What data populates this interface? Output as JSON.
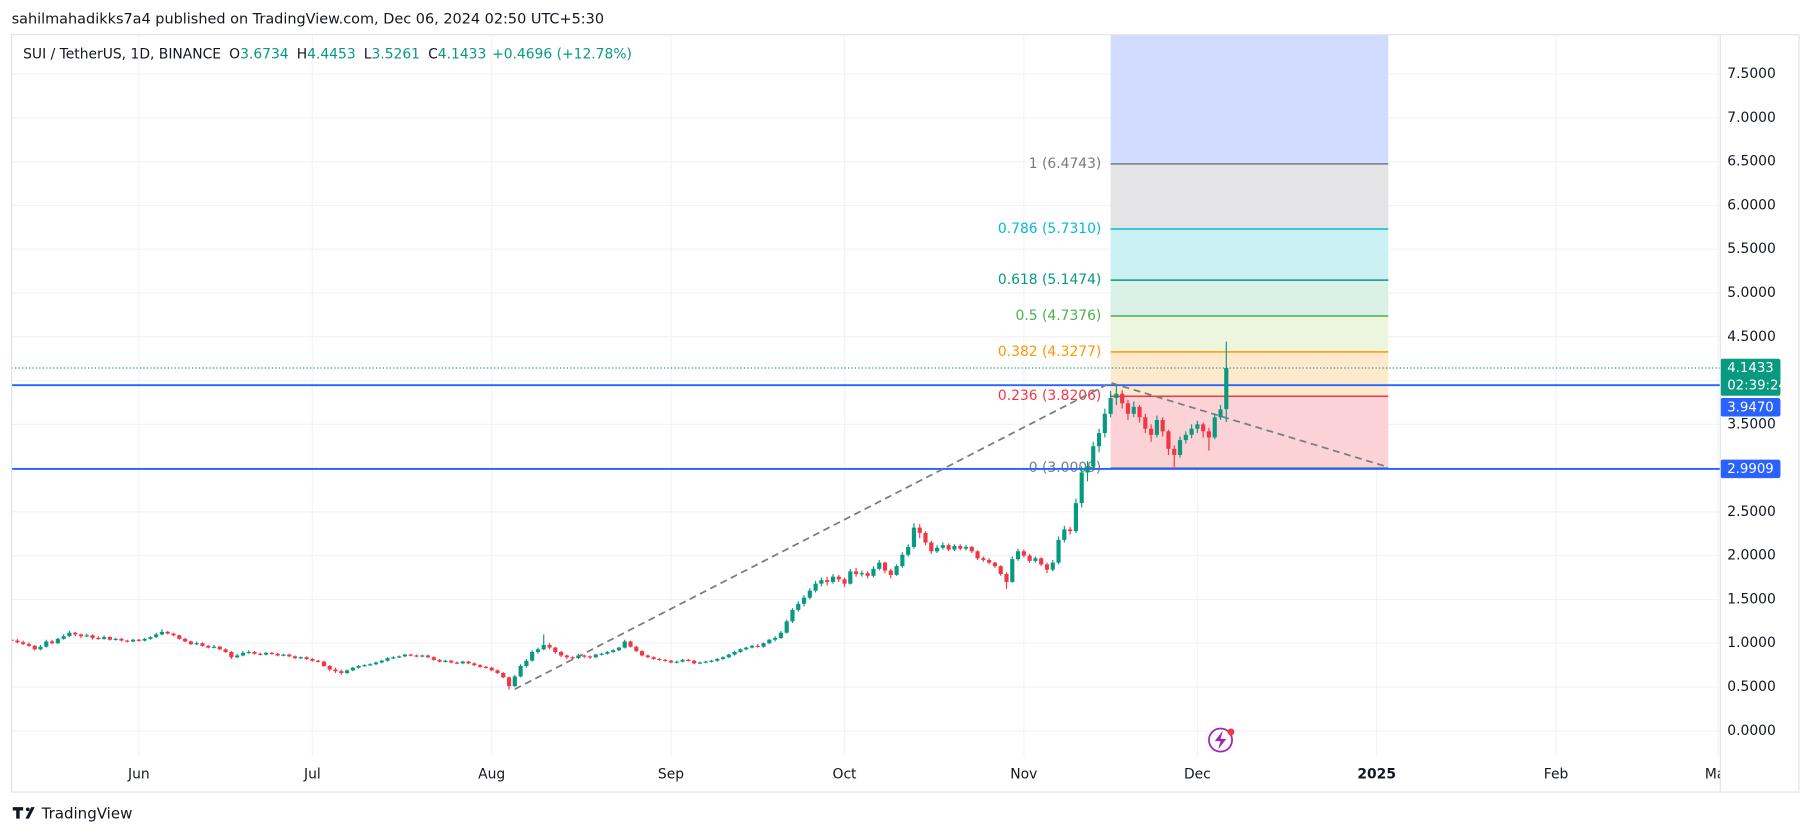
{
  "header": "sahilmahadikks7a4 published on TradingView.com, Dec 06, 2024 02:50 UTC+5:30",
  "footer": "TradingView",
  "chart_data": {
    "type": "candlestick",
    "symbol": "SUI / TetherUS, 1D, BINANCE",
    "ohlc": [
      {
        "label": "O",
        "value": 3.6734
      },
      {
        "label": "H",
        "value": 4.4453
      },
      {
        "label": "L",
        "value": 3.5261
      },
      {
        "label": "C",
        "value": 4.1433
      }
    ],
    "change": "+0.4696 (+12.78%)",
    "up_color": "#089981",
    "down_color": "#f23645",
    "candles": [
      [
        1.04,
        1.06,
        1.01,
        1.03
      ],
      [
        1.03,
        1.05,
        1.0,
        1.01
      ],
      [
        1.01,
        1.03,
        0.98,
        0.99
      ],
      [
        0.99,
        1.01,
        0.96,
        0.97
      ],
      [
        0.97,
        0.98,
        0.92,
        0.93
      ],
      [
        0.93,
        0.98,
        0.92,
        0.96
      ],
      [
        0.96,
        1.04,
        0.95,
        1.02
      ],
      [
        1.02,
        1.04,
        0.99,
        1.0
      ],
      [
        1.0,
        1.06,
        0.99,
        1.05
      ],
      [
        1.05,
        1.1,
        1.04,
        1.08
      ],
      [
        1.08,
        1.14,
        1.07,
        1.12
      ],
      [
        1.12,
        1.13,
        1.08,
        1.1
      ],
      [
        1.1,
        1.11,
        1.06,
        1.08
      ],
      [
        1.08,
        1.11,
        1.07,
        1.09
      ],
      [
        1.09,
        1.1,
        1.04,
        1.06
      ],
      [
        1.06,
        1.08,
        1.04,
        1.05
      ],
      [
        1.05,
        1.09,
        1.04,
        1.07
      ],
      [
        1.07,
        1.08,
        1.03,
        1.04
      ],
      [
        1.04,
        1.06,
        1.03,
        1.05
      ],
      [
        1.05,
        1.06,
        1.02,
        1.03
      ],
      [
        1.03,
        1.04,
        1.01,
        1.02
      ],
      [
        1.02,
        1.05,
        1.01,
        1.04
      ],
      [
        1.04,
        1.05,
        1.02,
        1.03
      ],
      [
        1.03,
        1.06,
        1.02,
        1.05
      ],
      [
        1.05,
        1.08,
        1.04,
        1.07
      ],
      [
        1.07,
        1.12,
        1.06,
        1.1
      ],
      [
        1.1,
        1.16,
        1.09,
        1.13
      ],
      [
        1.13,
        1.14,
        1.1,
        1.11
      ],
      [
        1.11,
        1.12,
        1.08,
        1.09
      ],
      [
        1.09,
        1.1,
        1.04,
        1.05
      ],
      [
        1.05,
        1.06,
        1.01,
        1.02
      ],
      [
        1.02,
        1.03,
        0.98,
        0.99
      ],
      [
        0.99,
        1.02,
        0.98,
        1.0
      ],
      [
        1.0,
        1.01,
        0.96,
        0.97
      ],
      [
        0.97,
        0.98,
        0.94,
        0.95
      ],
      [
        0.95,
        0.98,
        0.94,
        0.96
      ],
      [
        0.96,
        0.97,
        0.92,
        0.93
      ],
      [
        0.93,
        0.94,
        0.89,
        0.9
      ],
      [
        0.9,
        0.91,
        0.82,
        0.84
      ],
      [
        0.84,
        0.88,
        0.83,
        0.86
      ],
      [
        0.86,
        0.91,
        0.85,
        0.89
      ],
      [
        0.89,
        0.92,
        0.88,
        0.9
      ],
      [
        0.9,
        0.91,
        0.87,
        0.88
      ],
      [
        0.88,
        0.89,
        0.86,
        0.87
      ],
      [
        0.87,
        0.9,
        0.86,
        0.89
      ],
      [
        0.89,
        0.9,
        0.87,
        0.88
      ],
      [
        0.88,
        0.89,
        0.85,
        0.86
      ],
      [
        0.86,
        0.88,
        0.85,
        0.87
      ],
      [
        0.87,
        0.88,
        0.84,
        0.85
      ],
      [
        0.85,
        0.86,
        0.82,
        0.83
      ],
      [
        0.83,
        0.85,
        0.82,
        0.84
      ],
      [
        0.84,
        0.85,
        0.81,
        0.82
      ],
      [
        0.82,
        0.83,
        0.79,
        0.8
      ],
      [
        0.8,
        0.81,
        0.78,
        0.79
      ],
      [
        0.79,
        0.8,
        0.73,
        0.74
      ],
      [
        0.74,
        0.75,
        0.68,
        0.7
      ],
      [
        0.7,
        0.72,
        0.66,
        0.68
      ],
      [
        0.68,
        0.7,
        0.64,
        0.66
      ],
      [
        0.66,
        0.7,
        0.65,
        0.69
      ],
      [
        0.69,
        0.73,
        0.68,
        0.72
      ],
      [
        0.72,
        0.75,
        0.71,
        0.74
      ],
      [
        0.74,
        0.76,
        0.73,
        0.75
      ],
      [
        0.75,
        0.77,
        0.74,
        0.76
      ],
      [
        0.76,
        0.79,
        0.75,
        0.78
      ],
      [
        0.78,
        0.81,
        0.77,
        0.8
      ],
      [
        0.8,
        0.84,
        0.79,
        0.83
      ],
      [
        0.83,
        0.85,
        0.82,
        0.84
      ],
      [
        0.84,
        0.86,
        0.83,
        0.85
      ],
      [
        0.85,
        0.88,
        0.84,
        0.87
      ],
      [
        0.87,
        0.88,
        0.85,
        0.86
      ],
      [
        0.86,
        0.87,
        0.84,
        0.85
      ],
      [
        0.85,
        0.87,
        0.84,
        0.86
      ],
      [
        0.86,
        0.87,
        0.83,
        0.84
      ],
      [
        0.84,
        0.85,
        0.8,
        0.81
      ],
      [
        0.81,
        0.82,
        0.78,
        0.79
      ],
      [
        0.79,
        0.81,
        0.78,
        0.8
      ],
      [
        0.8,
        0.81,
        0.77,
        0.78
      ],
      [
        0.78,
        0.79,
        0.76,
        0.77
      ],
      [
        0.77,
        0.8,
        0.76,
        0.79
      ],
      [
        0.79,
        0.8,
        0.76,
        0.77
      ],
      [
        0.77,
        0.78,
        0.74,
        0.75
      ],
      [
        0.75,
        0.76,
        0.72,
        0.73
      ],
      [
        0.73,
        0.74,
        0.71,
        0.72
      ],
      [
        0.72,
        0.73,
        0.68,
        0.69
      ],
      [
        0.69,
        0.7,
        0.65,
        0.66
      ],
      [
        0.66,
        0.67,
        0.6,
        0.61
      ],
      [
        0.61,
        0.62,
        0.47,
        0.51
      ],
      [
        0.51,
        0.64,
        0.5,
        0.62
      ],
      [
        0.62,
        0.76,
        0.61,
        0.74
      ],
      [
        0.74,
        0.82,
        0.72,
        0.8
      ],
      [
        0.8,
        0.92,
        0.79,
        0.9
      ],
      [
        0.9,
        0.95,
        0.88,
        0.93
      ],
      [
        0.93,
        1.1,
        0.92,
        0.98
      ],
      [
        0.98,
        1.0,
        0.93,
        0.95
      ],
      [
        0.95,
        0.96,
        0.88,
        0.9
      ],
      [
        0.9,
        0.91,
        0.84,
        0.86
      ],
      [
        0.86,
        0.87,
        0.82,
        0.84
      ],
      [
        0.84,
        0.85,
        0.81,
        0.83
      ],
      [
        0.83,
        0.88,
        0.82,
        0.86
      ],
      [
        0.86,
        0.87,
        0.83,
        0.85
      ],
      [
        0.85,
        0.86,
        0.82,
        0.84
      ],
      [
        0.84,
        0.88,
        0.83,
        0.87
      ],
      [
        0.87,
        0.89,
        0.86,
        0.88
      ],
      [
        0.88,
        0.91,
        0.87,
        0.9
      ],
      [
        0.9,
        0.93,
        0.89,
        0.92
      ],
      [
        0.92,
        0.96,
        0.91,
        0.95
      ],
      [
        0.95,
        1.04,
        0.94,
        1.02
      ],
      [
        1.02,
        1.03,
        0.95,
        0.96
      ],
      [
        0.96,
        0.97,
        0.9,
        0.91
      ],
      [
        0.91,
        0.92,
        0.85,
        0.86
      ],
      [
        0.86,
        0.87,
        0.83,
        0.84
      ],
      [
        0.84,
        0.85,
        0.81,
        0.82
      ],
      [
        0.82,
        0.83,
        0.8,
        0.81
      ],
      [
        0.81,
        0.82,
        0.79,
        0.8
      ],
      [
        0.8,
        0.81,
        0.77,
        0.78
      ],
      [
        0.78,
        0.8,
        0.77,
        0.79
      ],
      [
        0.79,
        0.82,
        0.78,
        0.81
      ],
      [
        0.81,
        0.82,
        0.79,
        0.8
      ],
      [
        0.8,
        0.81,
        0.76,
        0.77
      ],
      [
        0.77,
        0.79,
        0.76,
        0.78
      ],
      [
        0.78,
        0.8,
        0.77,
        0.79
      ],
      [
        0.79,
        0.81,
        0.78,
        0.8
      ],
      [
        0.8,
        0.83,
        0.79,
        0.82
      ],
      [
        0.82,
        0.85,
        0.81,
        0.84
      ],
      [
        0.84,
        0.88,
        0.83,
        0.87
      ],
      [
        0.87,
        0.91,
        0.86,
        0.9
      ],
      [
        0.9,
        0.94,
        0.89,
        0.93
      ],
      [
        0.93,
        0.96,
        0.92,
        0.95
      ],
      [
        0.95,
        0.98,
        0.94,
        0.97
      ],
      [
        0.97,
        0.99,
        0.95,
        0.96
      ],
      [
        0.96,
        1.01,
        0.95,
        1.0
      ],
      [
        1.0,
        1.05,
        0.99,
        1.04
      ],
      [
        1.04,
        1.08,
        1.02,
        1.06
      ],
      [
        1.06,
        1.14,
        1.05,
        1.12
      ],
      [
        1.12,
        1.27,
        1.11,
        1.25
      ],
      [
        1.25,
        1.4,
        1.23,
        1.38
      ],
      [
        1.38,
        1.48,
        1.36,
        1.45
      ],
      [
        1.45,
        1.55,
        1.42,
        1.52
      ],
      [
        1.52,
        1.63,
        1.5,
        1.6
      ],
      [
        1.6,
        1.71,
        1.58,
        1.68
      ],
      [
        1.68,
        1.75,
        1.65,
        1.72
      ],
      [
        1.72,
        1.76,
        1.66,
        1.7
      ],
      [
        1.7,
        1.79,
        1.68,
        1.76
      ],
      [
        1.76,
        1.78,
        1.7,
        1.73
      ],
      [
        1.73,
        1.75,
        1.64,
        1.68
      ],
      [
        1.68,
        1.85,
        1.67,
        1.82
      ],
      [
        1.82,
        1.86,
        1.76,
        1.79
      ],
      [
        1.79,
        1.83,
        1.76,
        1.8
      ],
      [
        1.8,
        1.82,
        1.74,
        1.77
      ],
      [
        1.77,
        1.88,
        1.75,
        1.85
      ],
      [
        1.85,
        1.95,
        1.83,
        1.92
      ],
      [
        1.92,
        1.93,
        1.8,
        1.83
      ],
      [
        1.83,
        1.85,
        1.74,
        1.78
      ],
      [
        1.78,
        1.9,
        1.77,
        1.88
      ],
      [
        1.88,
        2.04,
        1.86,
        2.01
      ],
      [
        2.01,
        2.13,
        1.99,
        2.1
      ],
      [
        2.1,
        2.37,
        2.08,
        2.32
      ],
      [
        2.32,
        2.36,
        2.2,
        2.26
      ],
      [
        2.26,
        2.28,
        2.12,
        2.15
      ],
      [
        2.15,
        2.17,
        2.02,
        2.05
      ],
      [
        2.05,
        2.12,
        2.03,
        2.09
      ],
      [
        2.09,
        2.15,
        2.07,
        2.12
      ],
      [
        2.12,
        2.14,
        2.05,
        2.07
      ],
      [
        2.07,
        2.13,
        2.05,
        2.11
      ],
      [
        2.11,
        2.13,
        2.06,
        2.08
      ],
      [
        2.08,
        2.12,
        2.06,
        2.1
      ],
      [
        2.1,
        2.11,
        2.03,
        2.05
      ],
      [
        2.05,
        2.06,
        1.95,
        1.97
      ],
      [
        1.97,
        1.99,
        1.93,
        1.95
      ],
      [
        1.95,
        1.97,
        1.9,
        1.92
      ],
      [
        1.92,
        1.93,
        1.86,
        1.88
      ],
      [
        1.88,
        1.89,
        1.77,
        1.79
      ],
      [
        1.79,
        1.81,
        1.62,
        1.7
      ],
      [
        1.7,
        1.99,
        1.69,
        1.96
      ],
      [
        1.96,
        2.08,
        1.94,
        2.05
      ],
      [
        2.05,
        2.07,
        1.98,
        2.0
      ],
      [
        2.0,
        2.02,
        1.92,
        1.94
      ],
      [
        1.94,
        1.99,
        1.92,
        1.97
      ],
      [
        1.97,
        1.98,
        1.88,
        1.9
      ],
      [
        1.9,
        1.92,
        1.8,
        1.84
      ],
      [
        1.84,
        1.95,
        1.82,
        1.92
      ],
      [
        1.92,
        2.22,
        1.9,
        2.18
      ],
      [
        2.18,
        2.34,
        2.15,
        2.3
      ],
      [
        2.3,
        2.33,
        2.24,
        2.28
      ],
      [
        2.28,
        2.65,
        2.26,
        2.6
      ],
      [
        2.6,
        3.02,
        2.55,
        2.95
      ],
      [
        2.95,
        3.08,
        2.85,
        3.02
      ],
      [
        3.02,
        3.3,
        2.98,
        3.25
      ],
      [
        3.25,
        3.45,
        3.18,
        3.4
      ],
      [
        3.4,
        3.68,
        3.35,
        3.62
      ],
      [
        3.62,
        3.88,
        3.58,
        3.8
      ],
      [
        3.8,
        3.94,
        3.72,
        3.85
      ],
      [
        3.85,
        3.89,
        3.68,
        3.74
      ],
      [
        3.74,
        3.78,
        3.55,
        3.62
      ],
      [
        3.62,
        3.76,
        3.58,
        3.7
      ],
      [
        3.7,
        3.72,
        3.52,
        3.58
      ],
      [
        3.58,
        3.62,
        3.4,
        3.45
      ],
      [
        3.45,
        3.5,
        3.3,
        3.38
      ],
      [
        3.38,
        3.6,
        3.35,
        3.55
      ],
      [
        3.55,
        3.58,
        3.36,
        3.42
      ],
      [
        3.42,
        3.44,
        3.15,
        3.22
      ],
      [
        3.22,
        3.26,
        2.98,
        3.15
      ],
      [
        3.15,
        3.36,
        3.12,
        3.32
      ],
      [
        3.32,
        3.42,
        3.28,
        3.38
      ],
      [
        3.38,
        3.5,
        3.34,
        3.45
      ],
      [
        3.45,
        3.54,
        3.4,
        3.5
      ],
      [
        3.5,
        3.52,
        3.35,
        3.42
      ],
      [
        3.42,
        3.46,
        3.2,
        3.35
      ],
      [
        3.35,
        3.62,
        3.33,
        3.58
      ],
      [
        3.58,
        3.72,
        3.55,
        3.67
      ],
      [
        3.6734,
        4.4453,
        3.5261,
        4.1433
      ]
    ],
    "xlim": [
      0,
      295
    ],
    "xticks": [
      {
        "value": 22,
        "label": "Jun"
      },
      {
        "value": 52,
        "label": "Jul"
      },
      {
        "value": 83,
        "label": "Aug"
      },
      {
        "value": 114,
        "label": "Sep"
      },
      {
        "value": 144,
        "label": "Oct"
      },
      {
        "value": 175,
        "label": "Nov"
      },
      {
        "value": 205,
        "label": "Dec"
      },
      {
        "value": 236,
        "label": "2025"
      },
      {
        "value": 267,
        "label": "Feb"
      },
      {
        "value": 295,
        "label": "Mar"
      }
    ],
    "ylim": [
      -0.7,
      7.95
    ],
    "yticks": [
      {
        "value": 0,
        "label": "0.0000"
      },
      {
        "value": 0.5,
        "label": "0.5000"
      },
      {
        "value": 1,
        "label": "1.0000"
      },
      {
        "value": 1.5,
        "label": "1.5000"
      },
      {
        "value": 2,
        "label": "2.0000"
      },
      {
        "value": 2.5,
        "label": "2.5000"
      },
      {
        "value": 3,
        "label": "3.0000"
      },
      {
        "value": 3.5,
        "label": "3.5000"
      },
      {
        "value": 4,
        "label": "4.0000"
      },
      {
        "value": 4.5,
        "label": "4.5000"
      },
      {
        "value": 5,
        "label": "5.0000"
      },
      {
        "value": 5.5,
        "label": "5.5000"
      },
      {
        "value": 6,
        "label": "6.0000"
      },
      {
        "value": 6.5,
        "label": "6.5000"
      },
      {
        "value": 7,
        "label": "7.0000"
      },
      {
        "value": 7.5,
        "label": "7.5000"
      }
    ],
    "grid": true,
    "fib_levels": [
      {
        "value": 6.4743,
        "label": "1 (6.4743)",
        "color": "#787b86",
        "fill": "#e4e4e6"
      },
      {
        "value": 5.731,
        "label": "0.786 (5.7310)",
        "color": "#00bcd4",
        "fill": "#cbf1f5"
      },
      {
        "value": 5.1474,
        "label": "0.618 (5.1474)",
        "color": "#089981",
        "fill": "#d9f1e6"
      },
      {
        "value": 4.7376,
        "label": "0.5 (4.7376)",
        "color": "#4caf50",
        "fill": "#ecf5dd"
      },
      {
        "value": 4.3277,
        "label": "0.382 (4.3277)",
        "color": "#ff9800",
        "fill": "#fdeacd"
      },
      {
        "value": 3.8206,
        "label": "0.236 (3.8206)",
        "color": "#f23645",
        "fill": "#fbd3d6"
      },
      {
        "value": 3.0009,
        "label": "0 (3.0009)",
        "color": "#787b86"
      }
    ],
    "last_price": 4.1433,
    "countdown": "02:39:24",
    "last_color": "#089981",
    "levels": [
      {
        "value": 3.947,
        "label": "3.9470"
      },
      {
        "value": 2.9909,
        "label": "2.9909"
      }
    ],
    "level_color": "#2962ff"
  }
}
